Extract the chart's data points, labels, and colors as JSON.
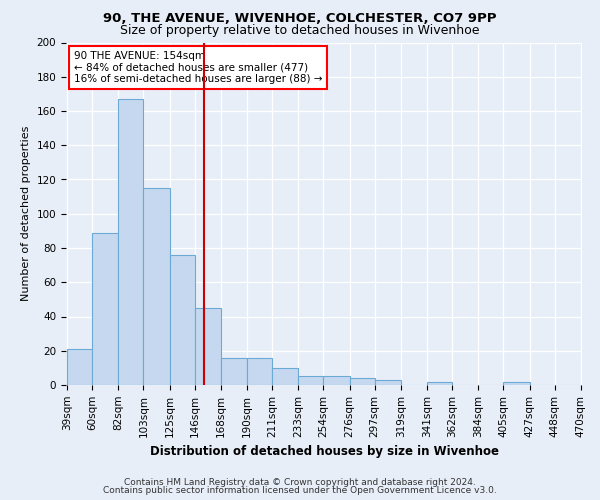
{
  "title1": "90, THE AVENUE, WIVENHOE, COLCHESTER, CO7 9PP",
  "title2": "Size of property relative to detached houses in Wivenhoe",
  "xlabel": "Distribution of detached houses by size in Wivenhoe",
  "ylabel": "Number of detached properties",
  "bar_values": [
    21,
    89,
    167,
    115,
    76,
    45,
    16,
    16,
    10,
    5,
    5,
    4,
    3,
    0,
    2,
    0,
    0,
    2,
    0,
    0
  ],
  "bar_labels": [
    "39sqm",
    "60sqm",
    "82sqm",
    "103sqm",
    "125sqm",
    "146sqm",
    "168sqm",
    "190sqm",
    "211sqm",
    "233sqm",
    "254sqm",
    "276sqm",
    "297sqm",
    "319sqm",
    "341sqm",
    "362sqm",
    "384sqm",
    "405sqm",
    "427sqm",
    "448sqm",
    "470sqm"
  ],
  "bar_color": "#c5d8f0",
  "bar_edge_color": "#6aaad4",
  "bin_edges": [
    39,
    60,
    82,
    103,
    125,
    146,
    168,
    190,
    211,
    233,
    254,
    276,
    297,
    319,
    341,
    362,
    384,
    405,
    427,
    448,
    470
  ],
  "annotation_title": "90 THE AVENUE: 154sqm",
  "annotation_line1": "← 84% of detached houses are smaller (477)",
  "annotation_line2": "16% of semi-detached houses are larger (88) →",
  "vline_color": "#cc0000",
  "vline_x": 154,
  "ylim": [
    0,
    200
  ],
  "yticks": [
    0,
    20,
    40,
    60,
    80,
    100,
    120,
    140,
    160,
    180,
    200
  ],
  "footer1": "Contains HM Land Registry data © Crown copyright and database right 2024.",
  "footer2": "Contains public sector information licensed under the Open Government Licence v3.0.",
  "bg_color": "#e8eef7",
  "grid_color": "#ffffff",
  "title1_fontsize": 9.5,
  "title2_fontsize": 9.0,
  "ylabel_fontsize": 8.0,
  "xlabel_fontsize": 8.5,
  "tick_fontsize": 7.5,
  "annotation_fontsize": 7.5,
  "footer_fontsize": 6.5
}
